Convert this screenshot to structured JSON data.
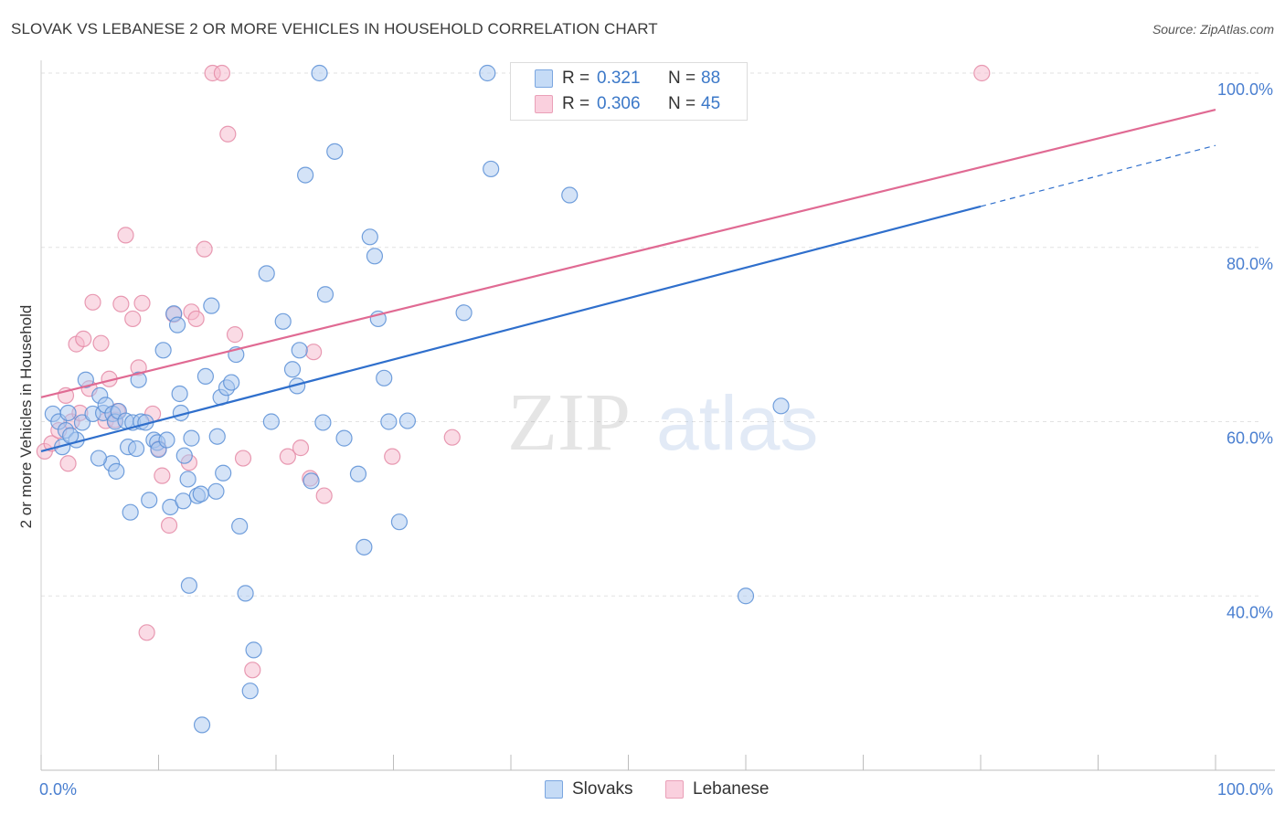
{
  "header": {
    "title": "SLOVAK VS LEBANESE 2 OR MORE VEHICLES IN HOUSEHOLD CORRELATION CHART",
    "source": "Source: ZipAtlas.com"
  },
  "stats": [
    {
      "r_label": "R =",
      "r_value": "0.321",
      "n_label": "N =",
      "n_value": "88"
    },
    {
      "r_label": "R =",
      "r_value": "0.306",
      "n_label": "N =",
      "n_value": "45"
    }
  ],
  "legend": {
    "items": [
      "Slovaks",
      "Lebanese"
    ]
  },
  "watermark": {
    "zip": "ZIP",
    "atlas": "atlas"
  },
  "colors": {
    "slovaks_fill": "#a9c8f0",
    "slovaks_stroke": "#5a8fd6",
    "slovaks_line": "#2f6fcc",
    "lebanese_fill": "#f6b8cb",
    "lebanese_stroke": "#e48aa6",
    "lebanese_line": "#e06a93",
    "tick_label": "#4a7fd0",
    "grid": "#e2e2e2"
  },
  "chart_data": {
    "type": "scatter",
    "title": "SLOVAK VS LEBANESE 2 OR MORE VEHICLES IN HOUSEHOLD CORRELATION CHART",
    "xlabel": "",
    "ylabel": "2 or more Vehicles in Household",
    "xlim": [
      0,
      100
    ],
    "ylim": [
      20,
      100
    ],
    "x_ticks": [
      {
        "value": 0,
        "label": "0.0%"
      },
      {
        "value": 100,
        "label": "100.0%"
      }
    ],
    "y_ticks": [
      {
        "value": 40,
        "label": "40.0%"
      },
      {
        "value": 60,
        "label": "60.0%"
      },
      {
        "value": 80,
        "label": "80.0%"
      },
      {
        "value": 100,
        "label": "100.0%"
      }
    ],
    "grid": true,
    "legend_position": "bottom-center",
    "series": [
      {
        "name": "Slovaks",
        "color": "#5a8fd6",
        "trend": {
          "x": [
            0,
            80
          ],
          "y": [
            56.6,
            84.7
          ],
          "dashed_to": {
            "x": 100,
            "y": 91.7
          }
        },
        "points": [
          [
            1.0,
            60.9
          ],
          [
            1.5,
            60.0
          ],
          [
            1.8,
            57.1
          ],
          [
            2.1,
            59.0
          ],
          [
            2.3,
            61.0
          ],
          [
            3.0,
            57.9
          ],
          [
            3.5,
            59.9
          ],
          [
            3.8,
            64.8
          ],
          [
            4.4,
            60.9
          ],
          [
            5.0,
            63.0
          ],
          [
            5.3,
            61.0
          ],
          [
            5.5,
            61.9
          ],
          [
            6.0,
            55.2
          ],
          [
            6.1,
            60.9
          ],
          [
            6.3,
            60.0
          ],
          [
            6.4,
            54.3
          ],
          [
            6.6,
            61.2
          ],
          [
            7.2,
            60.1
          ],
          [
            7.4,
            57.1
          ],
          [
            7.6,
            49.6
          ],
          [
            7.8,
            59.9
          ],
          [
            8.1,
            56.9
          ],
          [
            8.3,
            64.8
          ],
          [
            8.5,
            60.0
          ],
          [
            8.9,
            59.9
          ],
          [
            9.2,
            51.0
          ],
          [
            9.6,
            57.9
          ],
          [
            9.9,
            57.6
          ],
          [
            10.0,
            56.8
          ],
          [
            10.4,
            68.2
          ],
          [
            10.7,
            57.9
          ],
          [
            11.0,
            50.2
          ],
          [
            11.3,
            72.4
          ],
          [
            11.6,
            71.1
          ],
          [
            11.8,
            63.2
          ],
          [
            11.9,
            61.0
          ],
          [
            12.1,
            50.9
          ],
          [
            12.2,
            56.1
          ],
          [
            12.5,
            53.4
          ],
          [
            12.6,
            41.2
          ],
          [
            12.8,
            58.1
          ],
          [
            13.3,
            51.5
          ],
          [
            13.7,
            25.2
          ],
          [
            14.0,
            65.2
          ],
          [
            14.5,
            73.3
          ],
          [
            14.9,
            52.0
          ],
          [
            15.0,
            58.3
          ],
          [
            15.3,
            62.8
          ],
          [
            15.5,
            54.1
          ],
          [
            15.8,
            63.9
          ],
          [
            16.2,
            64.5
          ],
          [
            16.6,
            67.7
          ],
          [
            16.9,
            48.0
          ],
          [
            17.4,
            40.3
          ],
          [
            17.8,
            29.1
          ],
          [
            18.1,
            33.8
          ],
          [
            19.2,
            77.0
          ],
          [
            19.6,
            60.0
          ],
          [
            20.6,
            71.5
          ],
          [
            21.4,
            66.0
          ],
          [
            21.8,
            64.1
          ],
          [
            22.0,
            68.2
          ],
          [
            22.5,
            88.3
          ],
          [
            23.0,
            53.2
          ],
          [
            23.7,
            100.0
          ],
          [
            24.0,
            59.9
          ],
          [
            24.2,
            74.6
          ],
          [
            25.0,
            91.0
          ],
          [
            25.8,
            58.1
          ],
          [
            27.0,
            54.0
          ],
          [
            27.5,
            45.6
          ],
          [
            28.0,
            81.2
          ],
          [
            28.4,
            79.0
          ],
          [
            28.7,
            71.8
          ],
          [
            29.2,
            65.0
          ],
          [
            29.6,
            60.0
          ],
          [
            30.5,
            48.5
          ],
          [
            31.2,
            60.1
          ],
          [
            36.0,
            72.5
          ],
          [
            38.0,
            100.0
          ],
          [
            38.3,
            89.0
          ],
          [
            45.0,
            86.0
          ],
          [
            50.3,
            100.0
          ],
          [
            60.0,
            40.0
          ],
          [
            63.0,
            61.8
          ],
          [
            2.5,
            58.4
          ],
          [
            4.9,
            55.8
          ],
          [
            13.6,
            51.7
          ]
        ]
      },
      {
        "name": "Lebanese",
        "color": "#e48aa6",
        "trend": {
          "x": [
            0,
            100
          ],
          "y": [
            62.8,
            95.8
          ]
        },
        "points": [
          [
            0.3,
            56.6
          ],
          [
            0.9,
            57.5
          ],
          [
            1.5,
            59.0
          ],
          [
            2.1,
            63.0
          ],
          [
            2.3,
            55.2
          ],
          [
            2.6,
            60.0
          ],
          [
            3.0,
            68.9
          ],
          [
            3.3,
            61.0
          ],
          [
            3.6,
            69.5
          ],
          [
            4.1,
            63.8
          ],
          [
            4.4,
            73.7
          ],
          [
            5.1,
            69.0
          ],
          [
            5.5,
            60.1
          ],
          [
            5.8,
            64.9
          ],
          [
            6.3,
            60.2
          ],
          [
            6.5,
            61.2
          ],
          [
            6.8,
            73.5
          ],
          [
            7.2,
            81.4
          ],
          [
            7.8,
            71.8
          ],
          [
            8.3,
            66.2
          ],
          [
            8.6,
            73.6
          ],
          [
            9.0,
            35.8
          ],
          [
            9.5,
            60.9
          ],
          [
            10.0,
            56.9
          ],
          [
            10.3,
            53.8
          ],
          [
            10.9,
            48.1
          ],
          [
            11.3,
            72.3
          ],
          [
            12.6,
            55.3
          ],
          [
            12.8,
            72.6
          ],
          [
            13.2,
            71.8
          ],
          [
            13.9,
            79.8
          ],
          [
            14.6,
            100.0
          ],
          [
            15.4,
            100.0
          ],
          [
            15.9,
            93.0
          ],
          [
            16.5,
            70.0
          ],
          [
            17.2,
            55.8
          ],
          [
            18.0,
            31.5
          ],
          [
            21.0,
            56.0
          ],
          [
            22.1,
            57.0
          ],
          [
            22.9,
            53.5
          ],
          [
            23.2,
            68.0
          ],
          [
            24.1,
            51.5
          ],
          [
            29.9,
            56.0
          ],
          [
            35.0,
            58.2
          ],
          [
            80.1,
            100.0
          ]
        ]
      }
    ]
  }
}
